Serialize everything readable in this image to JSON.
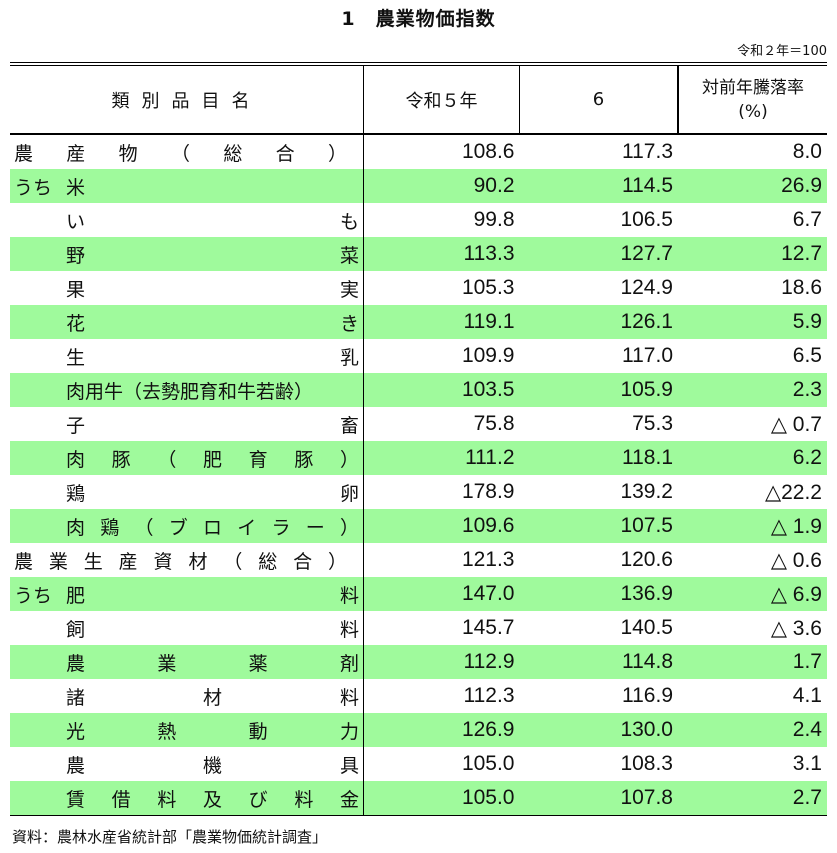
{
  "title": "1　農業物価指数",
  "unit_note": "令和２年＝100",
  "headers": {
    "category": "類別品目名",
    "year1": "令和５年",
    "year2": "6",
    "rate": "対前年騰落率",
    "rate_unit": "(%)"
  },
  "colors": {
    "highlight": "#9ffa9c"
  },
  "rows": [
    {
      "prefix": "",
      "name": "農 産 物 （ 総 合 ）",
      "full": true,
      "v1": "108.6",
      "v2": "117.3",
      "rate": "8.0"
    },
    {
      "prefix": "うち",
      "name": "米",
      "v1": "90.2",
      "v2": "114.5",
      "rate": "26.9"
    },
    {
      "prefix": "",
      "name": "い も",
      "v1": "99.8",
      "v2": "106.5",
      "rate": "6.7"
    },
    {
      "prefix": "",
      "name": "野 菜",
      "v1": "113.3",
      "v2": "127.7",
      "rate": "12.7"
    },
    {
      "prefix": "",
      "name": "果 実",
      "v1": "105.3",
      "v2": "124.9",
      "rate": "18.6"
    },
    {
      "prefix": "",
      "name": "花 き",
      "v1": "119.1",
      "v2": "126.1",
      "rate": "5.9"
    },
    {
      "prefix": "",
      "name": "生 乳",
      "v1": "109.9",
      "v2": "117.0",
      "rate": "6.5"
    },
    {
      "prefix": "",
      "name": "肉用牛（去勢肥育和牛若齢）",
      "v1": "103.5",
      "v2": "105.9",
      "rate": "2.3"
    },
    {
      "prefix": "",
      "name": "子 畜",
      "v1": "75.8",
      "v2": "75.3",
      "rate": "△ 0.7"
    },
    {
      "prefix": "",
      "name": "肉 豚 （ 肥 育 豚 ）",
      "v1": "111.2",
      "v2": "118.1",
      "rate": "6.2"
    },
    {
      "prefix": "",
      "name": "鶏 卵",
      "v1": "178.9",
      "v2": "139.2",
      "rate": "△22.2"
    },
    {
      "prefix": "",
      "name": "肉 鶏 （ ブ ロ イ ラ ー ）",
      "v1": "109.6",
      "v2": "107.5",
      "rate": "△ 1.9"
    },
    {
      "prefix": "",
      "name": "農 業 生 産 資 材 （ 総 合 ）",
      "full": true,
      "v1": "121.3",
      "v2": "120.6",
      "rate": "△ 0.6"
    },
    {
      "prefix": "うち",
      "name": "肥 料",
      "v1": "147.0",
      "v2": "136.9",
      "rate": "△ 6.9"
    },
    {
      "prefix": "",
      "name": "飼 料",
      "v1": "145.7",
      "v2": "140.5",
      "rate": "△ 3.6"
    },
    {
      "prefix": "",
      "name": "農 業 薬 剤",
      "v1": "112.9",
      "v2": "114.8",
      "rate": "1.7"
    },
    {
      "prefix": "",
      "name": "諸 材 料",
      "v1": "112.3",
      "v2": "116.9",
      "rate": "4.1"
    },
    {
      "prefix": "",
      "name": "光 熱 動 力",
      "v1": "126.9",
      "v2": "130.0",
      "rate": "2.4"
    },
    {
      "prefix": "",
      "name": "農 機 具",
      "v1": "105.0",
      "v2": "108.3",
      "rate": "3.1"
    },
    {
      "prefix": "",
      "name": "賃 借 料 及 び 料 金",
      "v1": "105.0",
      "v2": "107.8",
      "rate": "2.7"
    }
  ],
  "source": "資料：農林水産省統計部「農業物価統計調査」"
}
